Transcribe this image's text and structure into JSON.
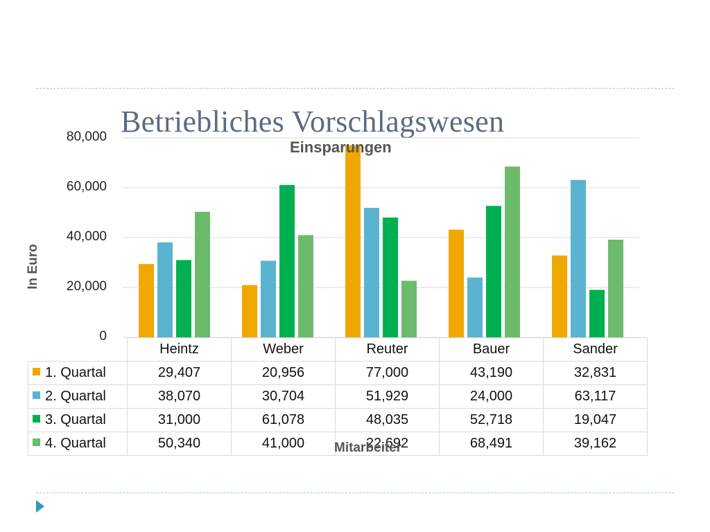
{
  "slide": {
    "title": "Betriebliches Vorschlagswesen"
  },
  "chart_data": {
    "type": "bar",
    "title": "Einsparungen",
    "xlabel": "Mitarbeiter",
    "ylabel": "In Euro",
    "ylim": [
      0,
      80000
    ],
    "yticks": [
      "0",
      "20,000",
      "40,000",
      "60,000",
      "80,000"
    ],
    "grid": true,
    "legend": "data-table",
    "categories": [
      "Heintz",
      "Weber",
      "Reuter",
      "Bauer",
      "Sander"
    ],
    "series": [
      {
        "name": "1. Quartal",
        "color": "#f0a800",
        "values": [
          29407,
          20956,
          77000,
          43190,
          32831
        ],
        "labels": [
          "29,407",
          "20,956",
          "77,000",
          "43,190",
          "32,831"
        ]
      },
      {
        "name": "2. Quartal",
        "color": "#5ab4d0",
        "values": [
          38070,
          30704,
          51929,
          24000,
          63117
        ],
        "labels": [
          "38,070",
          "30,704",
          "51,929",
          "24,000",
          "63,117"
        ]
      },
      {
        "name": "3. Quartal",
        "color": "#00b050",
        "values": [
          31000,
          61078,
          48035,
          52718,
          19047
        ],
        "labels": [
          "31,000",
          "61,078",
          "48,035",
          "52,718",
          "19,047"
        ]
      },
      {
        "name": "4. Quartal",
        "color": "#6cbb6c",
        "values": [
          50340,
          41000,
          22692,
          68491,
          39162
        ],
        "labels": [
          "50,340",
          "41,000",
          "22,692",
          "68,491",
          "39,162"
        ]
      }
    ]
  }
}
